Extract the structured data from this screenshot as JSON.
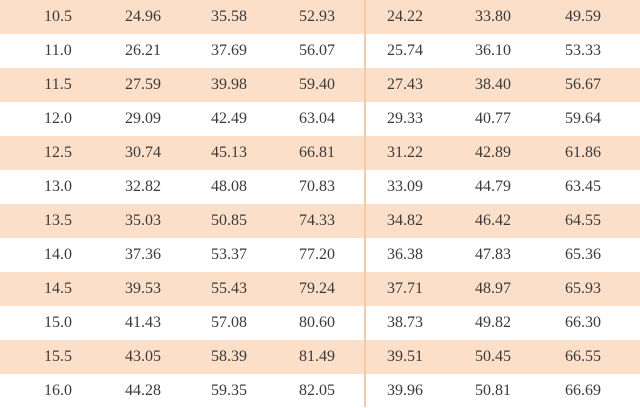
{
  "table": {
    "rows": [
      [
        "10.5",
        "24.96",
        "35.58",
        "52.93",
        "24.22",
        "33.80",
        "49.59"
      ],
      [
        "11.0",
        "26.21",
        "37.69",
        "56.07",
        "25.74",
        "36.10",
        "53.33"
      ],
      [
        "11.5",
        "27.59",
        "39.98",
        "59.40",
        "27.43",
        "38.40",
        "56.67"
      ],
      [
        "12.0",
        "29.09",
        "42.49",
        "63.04",
        "29.33",
        "40.77",
        "59.64"
      ],
      [
        "12.5",
        "30.74",
        "45.13",
        "66.81",
        "31.22",
        "42.89",
        "61.86"
      ],
      [
        "13.0",
        "32.82",
        "48.08",
        "70.83",
        "33.09",
        "44.79",
        "63.45"
      ],
      [
        "13.5",
        "35.03",
        "50.85",
        "74.33",
        "34.82",
        "46.42",
        "64.55"
      ],
      [
        "14.0",
        "37.36",
        "53.37",
        "77.20",
        "36.38",
        "47.83",
        "65.36"
      ],
      [
        "14.5",
        "39.53",
        "55.43",
        "79.24",
        "37.71",
        "48.97",
        "65.93"
      ],
      [
        "15.0",
        "41.43",
        "57.08",
        "80.60",
        "38.73",
        "49.82",
        "66.30"
      ],
      [
        "15.5",
        "43.05",
        "58.39",
        "81.49",
        "39.51",
        "50.45",
        "66.55"
      ],
      [
        "16.0",
        "44.28",
        "59.35",
        "82.05",
        "39.96",
        "50.81",
        "66.69"
      ]
    ]
  }
}
